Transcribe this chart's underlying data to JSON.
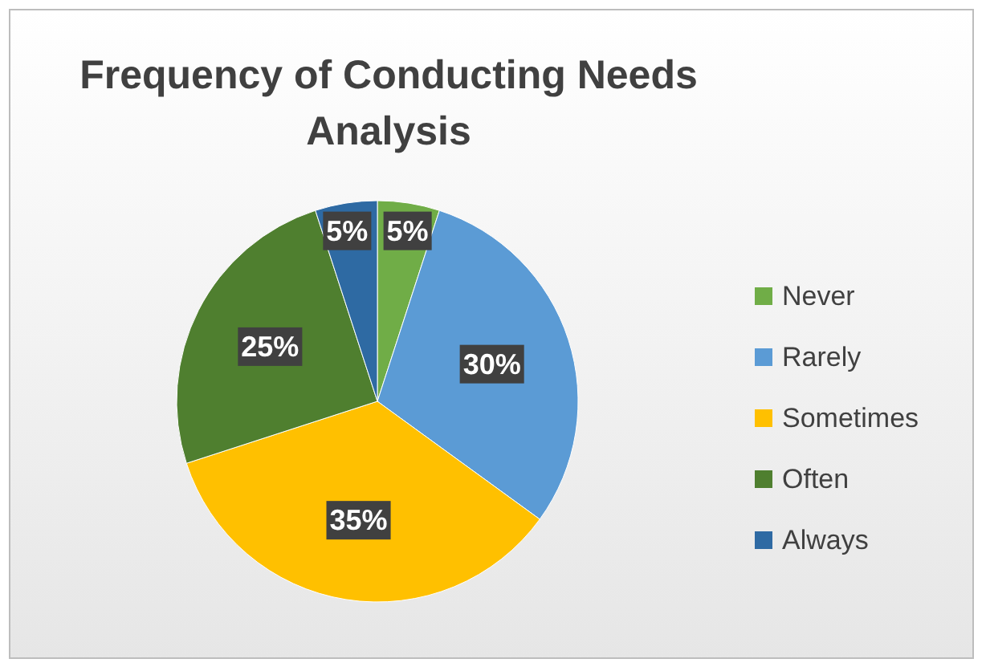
{
  "chart_data": {
    "type": "pie",
    "title": "Frequency of Conducting Needs Analysis",
    "categories": [
      "Never",
      "Rarely",
      "Sometimes",
      "Often",
      "Always"
    ],
    "values": [
      5,
      30,
      35,
      25,
      5
    ],
    "colors": [
      "#70ad47",
      "#5b9bd5",
      "#ffc000",
      "#4f7f2f",
      "#2e6aa3"
    ],
    "value_labels": [
      "5%",
      "30%",
      "35%",
      "25%",
      "5%"
    ],
    "legend": "right"
  }
}
